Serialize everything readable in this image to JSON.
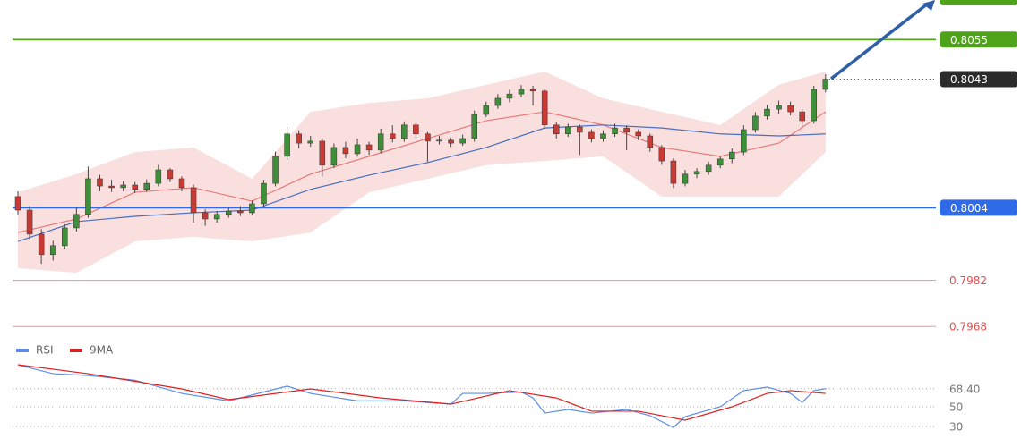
{
  "chart_data": {
    "type": "candlestick",
    "ylim": [
      0.7964,
      0.8067
    ],
    "up_color": "#3f8f3a",
    "down_color": "#c93a35",
    "candles": [
      [
        0.80074,
        0.8009,
        0.8002,
        0.80033
      ],
      [
        0.80033,
        0.80045,
        0.79945,
        0.7996
      ],
      [
        0.7996,
        0.79975,
        0.7987,
        0.79898
      ],
      [
        0.79898,
        0.7994,
        0.7988,
        0.79925
      ],
      [
        0.79925,
        0.7999,
        0.79915,
        0.79979
      ],
      [
        0.79979,
        0.8004,
        0.79968,
        0.8002
      ],
      [
        0.8002,
        0.80165,
        0.8001,
        0.80128
      ],
      [
        0.80128,
        0.8014,
        0.8009,
        0.80106
      ],
      [
        0.80106,
        0.80125,
        0.80088,
        0.80101
      ],
      [
        0.80101,
        0.8012,
        0.8009,
        0.80109
      ],
      [
        0.80109,
        0.80118,
        0.80085,
        0.80096
      ],
      [
        0.80096,
        0.80126,
        0.80088,
        0.80114
      ],
      [
        0.80114,
        0.8017,
        0.80105,
        0.80155
      ],
      [
        0.80155,
        0.8016,
        0.80118,
        0.80128
      ],
      [
        0.80128,
        0.80135,
        0.8009,
        0.80101
      ],
      [
        0.80101,
        0.8011,
        0.79995,
        0.80025
      ],
      [
        0.80025,
        0.80035,
        0.79985,
        0.80006
      ],
      [
        0.80006,
        0.8003,
        0.79995,
        0.8002
      ],
      [
        0.8002,
        0.8004,
        0.8001,
        0.8003
      ],
      [
        0.8003,
        0.80045,
        0.80015,
        0.80025
      ],
      [
        0.80025,
        0.80062,
        0.80018,
        0.80052
      ],
      [
        0.80052,
        0.80125,
        0.80045,
        0.80114
      ],
      [
        0.80114,
        0.8021,
        0.80105,
        0.80196
      ],
      [
        0.80196,
        0.80285,
        0.80185,
        0.80264
      ],
      [
        0.80264,
        0.80275,
        0.8022,
        0.80236
      ],
      [
        0.80236,
        0.80258,
        0.80225,
        0.80242
      ],
      [
        0.80242,
        0.8025,
        0.80135,
        0.80169
      ],
      [
        0.80169,
        0.80235,
        0.8016,
        0.80223
      ],
      [
        0.80223,
        0.8024,
        0.8019,
        0.80204
      ],
      [
        0.80204,
        0.8025,
        0.80195,
        0.80231
      ],
      [
        0.80231,
        0.8024,
        0.802,
        0.80215
      ],
      [
        0.80215,
        0.8028,
        0.80205,
        0.80264
      ],
      [
        0.80264,
        0.8029,
        0.80238,
        0.8025
      ],
      [
        0.8025,
        0.80302,
        0.8024,
        0.80291
      ],
      [
        0.80291,
        0.803,
        0.8025,
        0.80264
      ],
      [
        0.80264,
        0.8027,
        0.8018,
        0.80242
      ],
      [
        0.80242,
        0.80258,
        0.80232,
        0.80245
      ],
      [
        0.80245,
        0.80252,
        0.80225,
        0.80236
      ],
      [
        0.80236,
        0.80262,
        0.80228,
        0.8025
      ],
      [
        0.8025,
        0.80335,
        0.8024,
        0.80323
      ],
      [
        0.80323,
        0.80362,
        0.80315,
        0.8035
      ],
      [
        0.8035,
        0.80385,
        0.8034,
        0.80372
      ],
      [
        0.80372,
        0.80398,
        0.8036,
        0.80385
      ],
      [
        0.80385,
        0.80412,
        0.80375,
        0.80399
      ],
      [
        0.80399,
        0.8041,
        0.8035,
        0.80394
      ],
      [
        0.80394,
        0.804,
        0.8028,
        0.80291
      ],
      [
        0.80291,
        0.803,
        0.8025,
        0.80264
      ],
      [
        0.80264,
        0.80295,
        0.80255,
        0.80285
      ],
      [
        0.80285,
        0.80292,
        0.802,
        0.80269
      ],
      [
        0.80269,
        0.80278,
        0.80238,
        0.8025
      ],
      [
        0.8025,
        0.80275,
        0.8024,
        0.80264
      ],
      [
        0.80264,
        0.80295,
        0.80255,
        0.80282
      ],
      [
        0.80282,
        0.8029,
        0.80215,
        0.80269
      ],
      [
        0.80269,
        0.80278,
        0.80245,
        0.80258
      ],
      [
        0.80258,
        0.80265,
        0.8021,
        0.80223
      ],
      [
        0.80223,
        0.8023,
        0.8017,
        0.80182
      ],
      [
        0.80182,
        0.8019,
        0.801,
        0.80114
      ],
      [
        0.80114,
        0.80155,
        0.80105,
        0.80142
      ],
      [
        0.80142,
        0.8016,
        0.8013,
        0.8015
      ],
      [
        0.8015,
        0.8018,
        0.8014,
        0.80169
      ],
      [
        0.80169,
        0.80198,
        0.8016,
        0.80188
      ],
      [
        0.80188,
        0.8022,
        0.80175,
        0.80209
      ],
      [
        0.80209,
        0.8029,
        0.802,
        0.80277
      ],
      [
        0.80277,
        0.8033,
        0.80268,
        0.80318
      ],
      [
        0.80318,
        0.80352,
        0.80308,
        0.80339
      ],
      [
        0.80339,
        0.80365,
        0.80325,
        0.8035
      ],
      [
        0.8035,
        0.80362,
        0.8032,
        0.80331
      ],
      [
        0.80331,
        0.8034,
        0.80285,
        0.80304
      ],
      [
        0.80304,
        0.8041,
        0.80295,
        0.80399
      ],
      [
        0.80399,
        0.80445,
        0.8039,
        0.8043
      ]
    ],
    "overlay_x": [
      0,
      5,
      10,
      15,
      20,
      25,
      30,
      35,
      40,
      45,
      50,
      55,
      60,
      65,
      69
    ],
    "band_color": "#f7c9c9",
    "band_upper": [
      0.80087,
      0.80142,
      0.80209,
      0.80223,
      0.80128,
      0.80331,
      0.80358,
      0.80372,
      0.80413,
      0.80453,
      0.80372,
      0.80331,
      0.80291,
      0.80413,
      0.80453
    ],
    "band_lower": [
      0.79857,
      0.79843,
      0.79938,
      0.79952,
      0.79938,
      0.79965,
      0.80087,
      0.80128,
      0.80169,
      0.80182,
      0.80196,
      0.80074,
      0.80074,
      0.80074,
      0.80209
    ],
    "band_middle": {
      "color": "#e87a7a",
      "values": [
        0.79965,
        0.80006,
        0.80087,
        0.80101,
        0.8006,
        0.80142,
        0.80196,
        0.8025,
        0.80304,
        0.80331,
        0.80291,
        0.80223,
        0.80196,
        0.80236,
        0.80331
      ]
    },
    "moving_average": {
      "color": "#4a6fc0",
      "values": [
        0.79938,
        0.79998,
        0.80014,
        0.80025,
        0.80033,
        0.80096,
        0.80139,
        0.80177,
        0.80223,
        0.80282,
        0.80291,
        0.80282,
        0.80264,
        0.80258,
        0.80264
      ]
    },
    "levels": [
      {
        "value": 0.8055,
        "color": "#4ea31a",
        "style": "box"
      },
      {
        "value": 0.8043,
        "color": "#2b2b2b",
        "style": "current"
      },
      {
        "value": 0.8004,
        "color": "#2f6be8",
        "style": "box"
      },
      {
        "value": 0.7982,
        "color": "#e05050",
        "style": "text"
      },
      {
        "value": 0.7968,
        "color": "#e05050",
        "style": "text"
      }
    ],
    "rsi_panel": {
      "ylim": [
        10,
        95
      ],
      "yticks": [
        {
          "value": 68.4,
          "label": "68.40"
        },
        50,
        30
      ],
      "series": [
        {
          "name": "RSI",
          "color": "#5b8de8",
          "x": [
            0,
            3,
            6,
            10,
            14,
            18,
            21,
            23,
            25,
            29,
            33,
            37,
            38,
            40,
            43,
            44,
            45,
            47,
            49,
            52,
            54,
            56,
            57,
            60,
            62,
            64,
            66,
            67,
            68,
            69
          ],
          "values": [
            92.7,
            83.6,
            81.8,
            77,
            63.6,
            56,
            65,
            71,
            63.6,
            56,
            56,
            52.7,
            63.6,
            63.6,
            65,
            59,
            43.6,
            47.3,
            43.6,
            47.3,
            40.9,
            29,
            40,
            50,
            66.4,
            70,
            63.6,
            54.5,
            66.4,
            68.4
          ]
        },
        {
          "name": "9MA",
          "color": "#e02020",
          "x": [
            0,
            6,
            14,
            18,
            25,
            31,
            37,
            42,
            46,
            49,
            53,
            57,
            61,
            64,
            66,
            69
          ],
          "values": [
            92.7,
            83.6,
            68.2,
            57.3,
            68.2,
            59,
            52.7,
            66.4,
            59,
            45.5,
            45.5,
            36.4,
            50,
            63.6,
            66.4,
            63.6
          ]
        }
      ]
    }
  }
}
